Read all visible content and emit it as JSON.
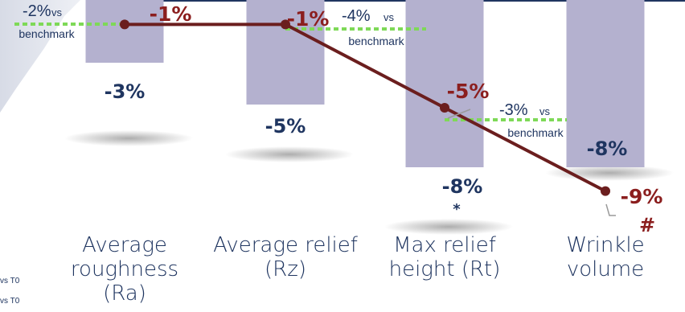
{
  "chart_data": {
    "type": "bar",
    "categories": [
      [
        "Average",
        "roughness",
        "(Ra)"
      ],
      [
        "Average relief",
        "(Rz)"
      ],
      [
        "Max relief",
        "height (Rt)"
      ],
      [
        "Wrinkle",
        "volume"
      ]
    ],
    "series": [
      {
        "type": "bar",
        "values": [
          -3,
          -5,
          -8,
          -8
        ],
        "labels": [
          "-3%",
          "-5%",
          "-8%",
          "-8%"
        ],
        "markers": [
          "",
          "",
          "*",
          ""
        ],
        "color": "#b4b1cf"
      },
      {
        "type": "line",
        "values": [
          -1,
          -1,
          -5,
          -9
        ],
        "labels": [
          "-1%",
          "-1%",
          "-5%",
          "-9%"
        ],
        "markers": [
          "",
          "",
          "",
          "#"
        ],
        "color": "#6b1e1e"
      }
    ],
    "benchmarks": [
      {
        "category": 0,
        "value": "-2%",
        "vs": "vs",
        "word": "benchmark"
      },
      {
        "category": 1,
        "value": "-4%",
        "vs": "vs",
        "word": "benchmark"
      },
      {
        "category": 2,
        "value": "-3%",
        "vs": "vs",
        "word": "benchmark"
      }
    ],
    "benchmark_color": "#7ed957",
    "footnotes": [
      "vs T0",
      "vs T0"
    ]
  }
}
